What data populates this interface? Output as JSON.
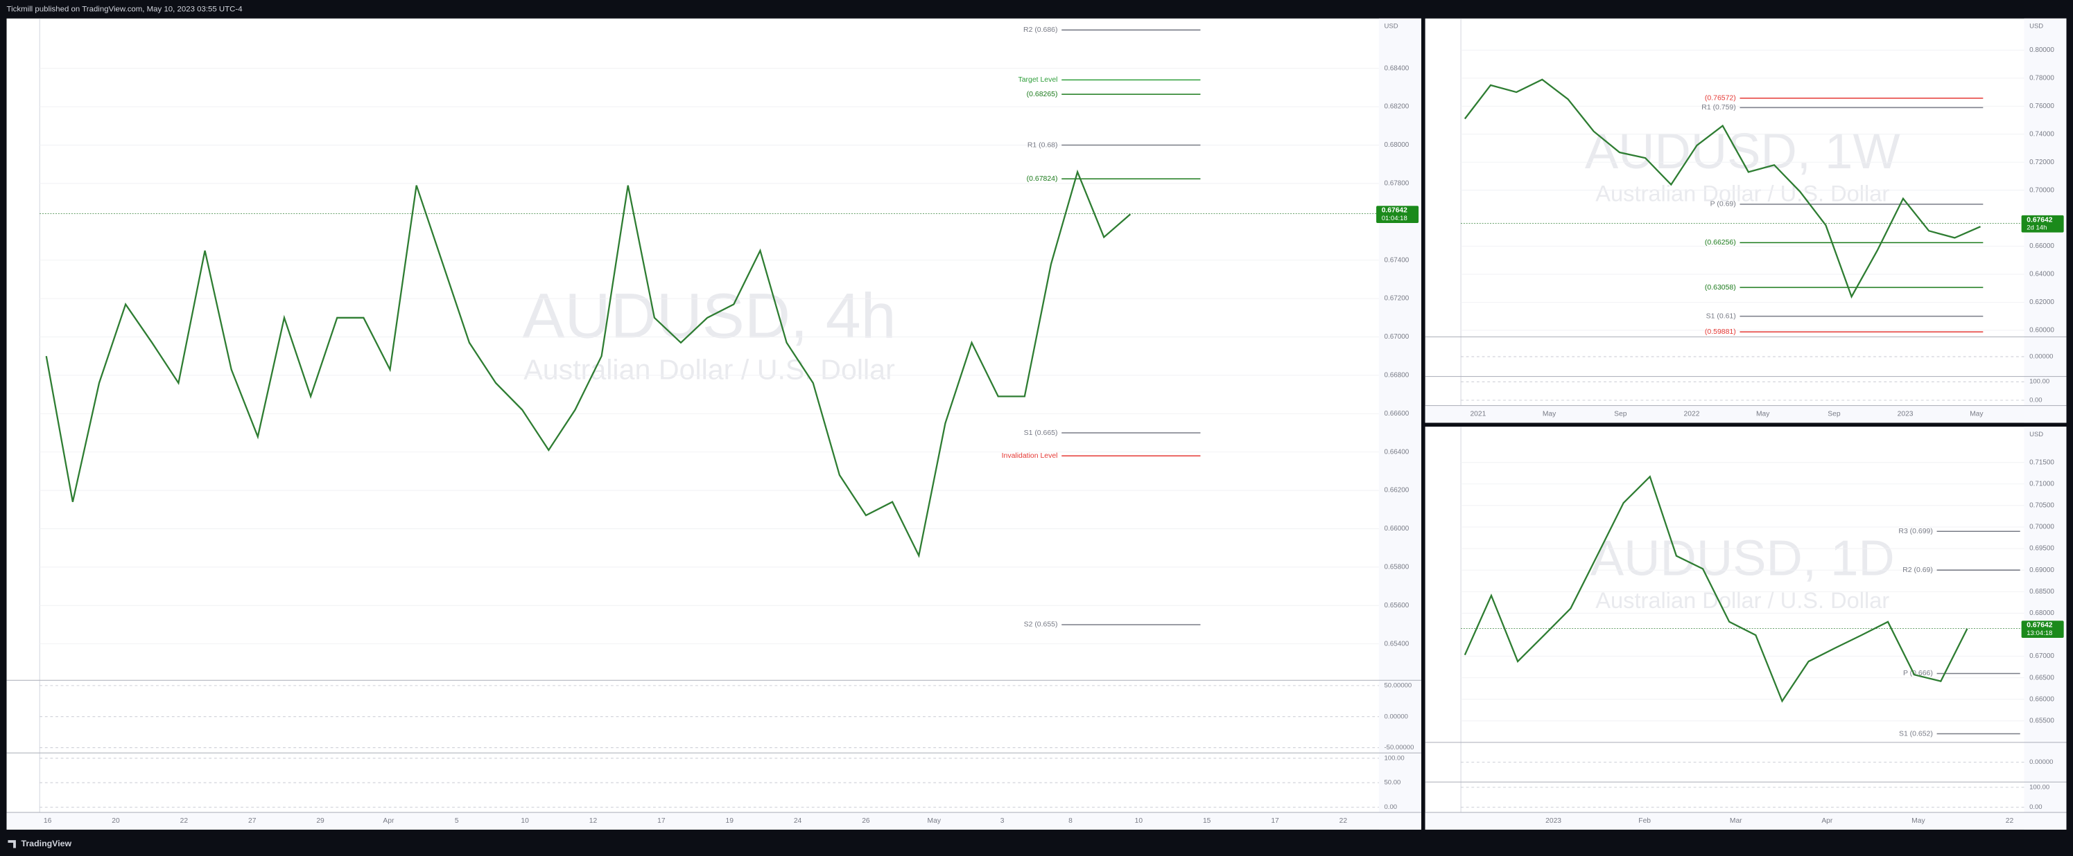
{
  "header": {
    "text": "Tickmill published on TradingView.com, May 10, 2023 03:55 UTC-4"
  },
  "footer": {
    "logo": "TradingView"
  },
  "chart_data": [
    {
      "type": "line",
      "title": "AUDUSD, 4h",
      "subtitle": "Australian Dollar / U.S. Dollar",
      "axis_unit": "USD",
      "color": "#2e7d32",
      "values": [
        0.669,
        0.6614,
        0.6676,
        0.6717,
        0.6697,
        0.6676,
        0.6745,
        0.6683,
        0.6648,
        0.671,
        0.6669,
        0.671,
        0.671,
        0.6683,
        0.6779,
        0.6738,
        0.6697,
        0.6676,
        0.6662,
        0.6641,
        0.6662,
        0.669,
        0.6779,
        0.671,
        0.6697,
        0.671,
        0.6717,
        0.6745,
        0.6697,
        0.6676,
        0.6628,
        0.6607,
        0.6614,
        0.6586,
        0.6655,
        0.6697,
        0.6669,
        0.6669,
        0.6738,
        0.6786,
        0.6752,
        0.6764
      ],
      "ylim": [
        0.6521,
        0.6866
      ],
      "yticks": [
        {
          "value": 0.684,
          "label": "0.68400"
        },
        {
          "value": 0.682,
          "label": "0.68200"
        },
        {
          "value": 0.68,
          "label": "0.68000"
        },
        {
          "value": 0.678,
          "label": "0.67800"
        },
        {
          "value": 0.674,
          "label": "0.67400"
        },
        {
          "value": 0.672,
          "label": "0.67200"
        },
        {
          "value": 0.67,
          "label": "0.67000"
        },
        {
          "value": 0.668,
          "label": "0.66800"
        },
        {
          "value": 0.666,
          "label": "0.66600"
        },
        {
          "value": 0.664,
          "label": "0.66400"
        },
        {
          "value": 0.662,
          "label": "0.66200"
        },
        {
          "value": 0.66,
          "label": "0.66000"
        },
        {
          "value": 0.658,
          "label": "0.65800"
        },
        {
          "value": 0.656,
          "label": "0.65600"
        },
        {
          "value": 0.654,
          "label": "0.65400"
        }
      ],
      "xtick_labels": [
        "16",
        "20",
        "22",
        "27",
        "29",
        "Apr",
        "5",
        "10",
        "12",
        "17",
        "19",
        "24",
        "26",
        "May",
        "3",
        "8",
        "10",
        "15",
        "17",
        "22"
      ],
      "annotations": [
        {
          "text": "R2 (0.686)",
          "value": 0.686,
          "color": "#787b86"
        },
        {
          "text": "Target Level",
          "value": 0.6834,
          "color": "#2e9e3a"
        },
        {
          "text": "(0.68265)",
          "value": 0.68265,
          "color": "#1b7a1b"
        },
        {
          "text": "R1 (0.68)",
          "value": 0.68,
          "color": "#787b86"
        },
        {
          "text": "(0.67824)",
          "value": 0.67824,
          "color": "#1b7a1b"
        },
        {
          "text": "S1 (0.665)",
          "value": 0.665,
          "color": "#787b86"
        },
        {
          "text": "Invalidation Level",
          "value": 0.6638,
          "color": "#e53935"
        },
        {
          "text": "S2 (0.655)",
          "value": 0.655,
          "color": "#787b86"
        }
      ],
      "last_price": {
        "value": 0.67642,
        "countdown": "01:04:18"
      },
      "osc_labels": [
        "50.00000",
        "0.00000",
        "-50.00000"
      ],
      "stoch_labels": [
        "100.00",
        "50.00",
        "0.00"
      ]
    },
    {
      "type": "line",
      "title": "AUDUSD, 1W",
      "subtitle": "Australian Dollar / U.S. Dollar",
      "axis_unit": "USD",
      "color": "#2e7d32",
      "values": [
        0.751,
        0.775,
        0.77,
        0.779,
        0.765,
        0.742,
        0.727,
        0.723,
        0.704,
        0.732,
        0.746,
        0.713,
        0.718,
        0.699,
        0.675,
        0.624,
        0.657,
        0.694,
        0.671,
        0.666,
        0.674
      ],
      "ylim": [
        0.5953,
        0.8226
      ],
      "yticks": [
        {
          "value": 0.8,
          "label": "0.80000"
        },
        {
          "value": 0.78,
          "label": "0.78000"
        },
        {
          "value": 0.76,
          "label": "0.76000"
        },
        {
          "value": 0.74,
          "label": "0.74000"
        },
        {
          "value": 0.72,
          "label": "0.72000"
        },
        {
          "value": 0.7,
          "label": "0.70000"
        },
        {
          "value": 0.66,
          "label": "0.66000"
        },
        {
          "value": 0.64,
          "label": "0.64000"
        },
        {
          "value": 0.62,
          "label": "0.62000"
        },
        {
          "value": 0.6,
          "label": "0.60000"
        }
      ],
      "xtick_labels": [
        "2021",
        "May",
        "Sep",
        "2022",
        "May",
        "Sep",
        "2023",
        "May"
      ],
      "annotations": [
        {
          "text": "(0.76572)",
          "value": 0.76572,
          "color": "#e53935"
        },
        {
          "text": "R1 (0.759)",
          "value": 0.759,
          "color": "#787b86"
        },
        {
          "text": "P (0.69)",
          "value": 0.69,
          "color": "#787b86"
        },
        {
          "text": "(0.66256)",
          "value": 0.66256,
          "color": "#1b7a1b"
        },
        {
          "text": "(0.63058)",
          "value": 0.63058,
          "color": "#1b7a1b"
        },
        {
          "text": "S1 (0.61)",
          "value": 0.61,
          "color": "#787b86"
        },
        {
          "text": "(0.59881)",
          "value": 0.59881,
          "color": "#e53935"
        }
      ],
      "last_price": {
        "value": 0.67642,
        "countdown": "2d 14h"
      },
      "osc_labels": [
        "0.00000"
      ],
      "stoch_labels": [
        "100.00",
        "0.00"
      ]
    },
    {
      "type": "line",
      "title": "AUDUSD, 1D",
      "subtitle": "Australian Dollar / U.S. Dollar",
      "axis_unit": "USD",
      "color": "#2e7d32",
      "values": [
        0.6703,
        0.6841,
        0.6688,
        0.6749,
        0.6811,
        0.6933,
        0.7056,
        0.7117,
        0.6933,
        0.6903,
        0.678,
        0.6749,
        0.6596,
        0.6688,
        0.6719,
        0.6749,
        0.678,
        0.6657,
        0.6642,
        0.6764
      ],
      "ylim": [
        0.65,
        0.7233
      ],
      "yticks": [
        {
          "value": 0.715,
          "label": "0.71500"
        },
        {
          "value": 0.71,
          "label": "0.71000"
        },
        {
          "value": 0.705,
          "label": "0.70500"
        },
        {
          "value": 0.7,
          "label": "0.70000"
        },
        {
          "value": 0.695,
          "label": "0.69500"
        },
        {
          "value": 0.69,
          "label": "0.69000"
        },
        {
          "value": 0.685,
          "label": "0.68500"
        },
        {
          "value": 0.68,
          "label": "0.68000"
        },
        {
          "value": 0.67,
          "label": "0.67000"
        },
        {
          "value": 0.665,
          "label": "0.66500"
        },
        {
          "value": 0.66,
          "label": "0.66000"
        },
        {
          "value": 0.655,
          "label": "0.65500"
        }
      ],
      "xtick_labels": [
        "2023",
        "Feb",
        "Mar",
        "Apr",
        "May",
        "22"
      ],
      "annotations": [
        {
          "text": "R3 (0.699)",
          "value": 0.699,
          "color": "#787b86"
        },
        {
          "text": "R2 (0.69)",
          "value": 0.69,
          "color": "#787b86"
        },
        {
          "text": "P (0.666)",
          "value": 0.666,
          "color": "#787b86"
        },
        {
          "text": "S1 (0.652)",
          "value": 0.652,
          "color": "#787b86"
        }
      ],
      "last_price": {
        "value": 0.67642,
        "countdown": "13:04:18"
      },
      "osc_labels": [
        "0.00000"
      ],
      "stoch_labels": [
        "100.00",
        "0.00"
      ]
    }
  ]
}
